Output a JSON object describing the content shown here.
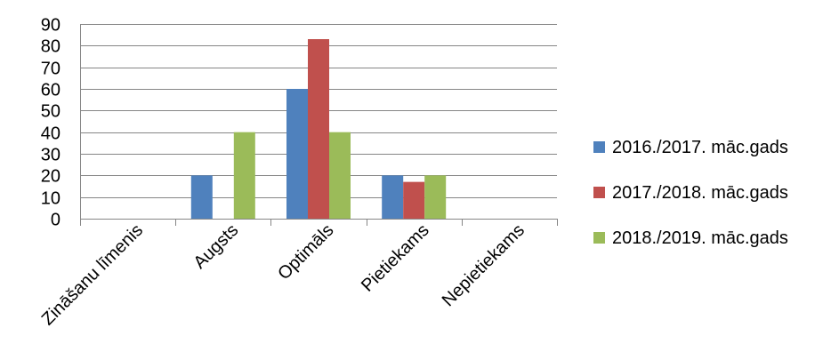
{
  "chart_data": {
    "type": "bar",
    "title": "",
    "xlabel": "",
    "ylabel": "",
    "categories": [
      "Zināšanu līmenis",
      "Augsts",
      "Optimāls",
      "Pietiekams",
      "Nepietiekams"
    ],
    "series": [
      {
        "name": "2016./2017. māc.gads",
        "color": "#4F81BD",
        "values": [
          null,
          20,
          60,
          20,
          null
        ]
      },
      {
        "name": "2017./2018. māc.gads",
        "color": "#C0504D",
        "values": [
          null,
          null,
          83,
          17,
          null
        ]
      },
      {
        "name": "2018./2019. māc.gads",
        "color": "#9BBB59",
        "values": [
          null,
          40,
          40,
          20,
          null
        ]
      }
    ],
    "ylim": [
      0,
      90
    ],
    "yticks": [
      0,
      10,
      20,
      30,
      40,
      50,
      60,
      70,
      80,
      90
    ],
    "grid": true,
    "legend_position": "right",
    "gridline_color": "#868686"
  }
}
